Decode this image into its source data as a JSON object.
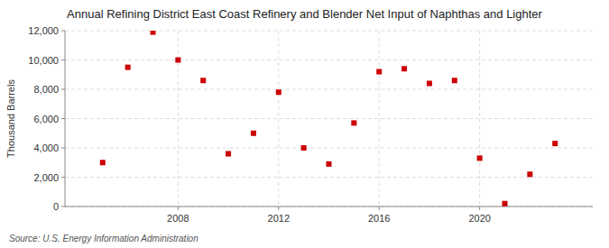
{
  "chart_data": {
    "type": "scatter",
    "title": "Annual Refining District East Coast Refinery and Blender Net Input of Naphthas and Lighter",
    "ylabel": "Thousand Barrels",
    "source": "Source: U.S. Energy Information Administration",
    "x": [
      2005,
      2006,
      2007,
      2008,
      2009,
      2010,
      2011,
      2012,
      2013,
      2014,
      2015,
      2016,
      2017,
      2018,
      2019,
      2020,
      2021,
      2022,
      2023
    ],
    "values": [
      3000,
      9500,
      11900,
      10000,
      8600,
      3600,
      5000,
      7800,
      4000,
      2900,
      5700,
      9200,
      9400,
      8400,
      8600,
      3300,
      200,
      2200,
      4300
    ],
    "color": "#cc0000",
    "marker": "square",
    "xlim": [
      2003.5,
      2024.5
    ],
    "ylim": [
      0,
      12000
    ],
    "xticks": [
      2008,
      2012,
      2016,
      2020
    ],
    "yticks": [
      0,
      {
        "value": 2000,
        "label": "2,000"
      },
      {
        "value": 4000,
        "label": "4,000"
      },
      {
        "value": 6000,
        "label": "6,000"
      },
      {
        "value": 8000,
        "label": "8,000"
      },
      {
        "value": 10000,
        "label": "10,000"
      },
      {
        "value": 12000,
        "label": "12,000"
      }
    ],
    "grid": true
  }
}
